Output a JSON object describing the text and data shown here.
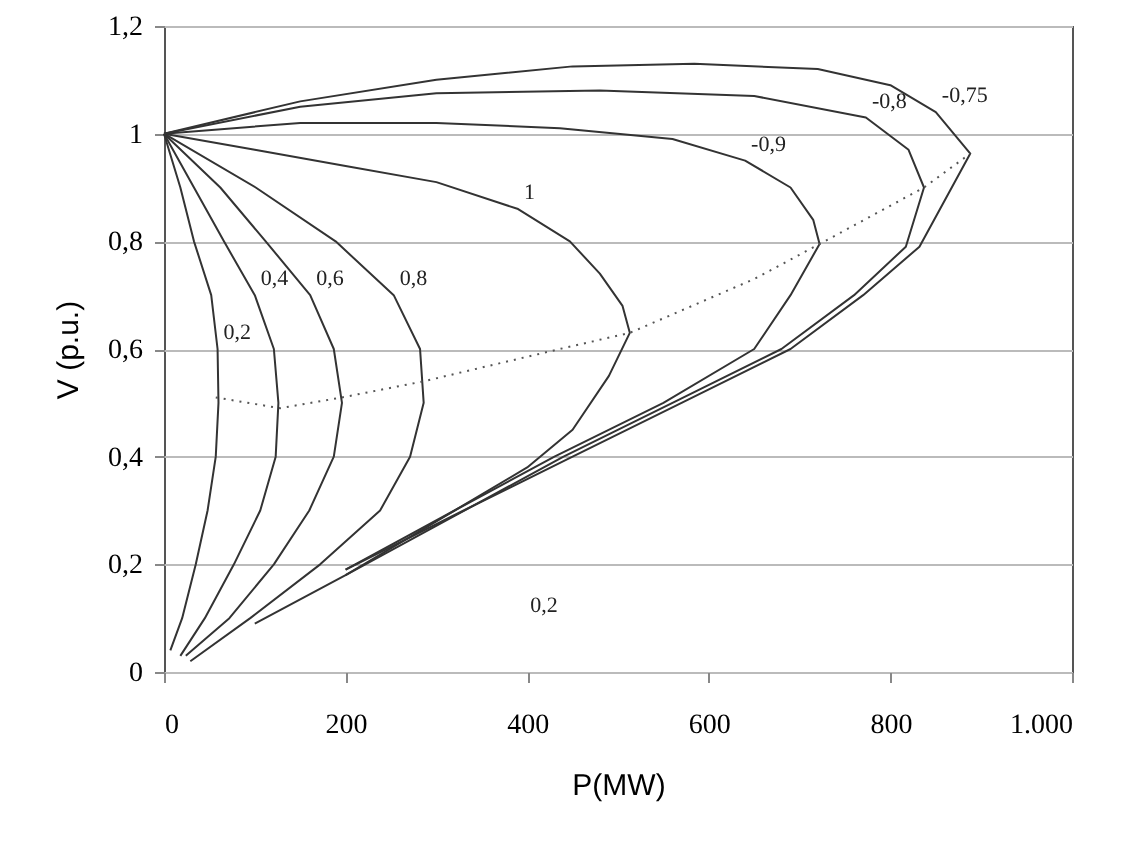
{
  "chart_data": {
    "type": "line",
    "xlabel": "P(MW)",
    "ylabel": "V (p.u.)",
    "xlim": [
      0,
      1000
    ],
    "ylim": [
      0,
      1.2
    ],
    "xticks": [
      0,
      200,
      400,
      600,
      800,
      {
        "value": 1000,
        "label": "1.000"
      }
    ],
    "yticks": [
      0,
      {
        "value": 0.2,
        "label": "0,2"
      },
      {
        "value": 0.4,
        "label": "0,4"
      },
      {
        "value": 0.6,
        "label": "0,6"
      },
      {
        "value": 0.8,
        "label": "0,8"
      },
      1,
      {
        "value": 1.2,
        "label": "1,2"
      }
    ],
    "grid": "y",
    "line_style": "solid",
    "series": [
      {
        "name": "0,2",
        "color": "#333333",
        "x": [
          0,
          18,
          33,
          52,
          59,
          60,
          57,
          48,
          35,
          20,
          7
        ],
        "values": [
          1,
          0.9,
          0.8,
          0.7,
          0.6,
          0.5,
          0.4,
          0.3,
          0.2,
          0.1,
          0.04
        ]
      },
      {
        "name": "0,4",
        "color": "#333333",
        "x": [
          0,
          33,
          66,
          100,
          121,
          126,
          123,
          106,
          77,
          45,
          18
        ],
        "values": [
          1,
          0.9,
          0.8,
          0.7,
          0.6,
          0.5,
          0.4,
          0.3,
          0.2,
          0.1,
          0.03
        ]
      },
      {
        "name": "0,6",
        "color": "#333333",
        "x": [
          0,
          62,
          112,
          161,
          187,
          196,
          187,
          160,
          121,
          72,
          24
        ],
        "values": [
          1,
          0.9,
          0.8,
          0.7,
          0.6,
          0.5,
          0.4,
          0.3,
          0.2,
          0.1,
          0.03
        ]
      },
      {
        "name": "0,8",
        "color": "#333333",
        "x": [
          0,
          101,
          189,
          253,
          282,
          286,
          271,
          238,
          172,
          95,
          29
        ],
        "values": [
          1,
          0.9,
          0.8,
          0.7,
          0.6,
          0.5,
          0.4,
          0.3,
          0.2,
          0.1,
          0.02
        ]
      },
      {
        "name": "1",
        "color": "#333333",
        "x": [
          0,
          100,
          200,
          300,
          390,
          447,
          480,
          505,
          513,
          490,
          450,
          400,
          300,
          200,
          100
        ],
        "values": [
          1,
          0.97,
          0.94,
          0.91,
          0.86,
          0.8,
          0.74,
          0.68,
          0.63,
          0.55,
          0.45,
          0.38,
          0.28,
          0.18,
          0.09
        ]
      },
      {
        "name": "-0,9",
        "color": "#333333",
        "x": [
          0,
          150,
          300,
          436,
          560,
          640,
          690,
          715,
          722,
          690,
          650,
          550,
          430,
          320,
          200
        ],
        "values": [
          1,
          1.02,
          1.02,
          1.01,
          0.99,
          0.95,
          0.9,
          0.84,
          0.795,
          0.7,
          0.6,
          0.5,
          0.4,
          0.3,
          0.19
        ]
      },
      {
        "name": "-0,8",
        "color": "#333333",
        "x": [
          0,
          150,
          300,
          480,
          650,
          773,
          820,
          837,
          817,
          760,
          680,
          560,
          440,
          320,
          200
        ],
        "values": [
          1,
          1.05,
          1.075,
          1.08,
          1.07,
          1.03,
          0.97,
          0.9,
          0.79,
          0.7,
          0.6,
          0.5,
          0.4,
          0.29,
          0.18
        ]
      },
      {
        "name": "-0,75",
        "color": "#333333",
        "x": [
          0,
          150,
          300,
          450,
          584,
          720,
          800,
          850,
          888,
          832,
          770,
          690,
          570,
          450,
          330,
          200
        ],
        "values": [
          1,
          1.06,
          1.1,
          1.125,
          1.13,
          1.12,
          1.09,
          1.04,
          0.963,
          0.79,
          0.7,
          0.6,
          0.5,
          0.4,
          0.3,
          0.19
        ]
      },
      {
        "color": "#555555",
        "line_style": "dotted",
        "x": [
          57,
          128,
          196,
          286,
          436,
          513,
          650,
          722,
          837,
          888
        ],
        "values": [
          0.51,
          0.49,
          0.51,
          0.54,
          0.6,
          0.63,
          0.73,
          0.795,
          0.9,
          0.963
        ]
      }
    ],
    "annotations": [
      "0,2"
    ]
  }
}
